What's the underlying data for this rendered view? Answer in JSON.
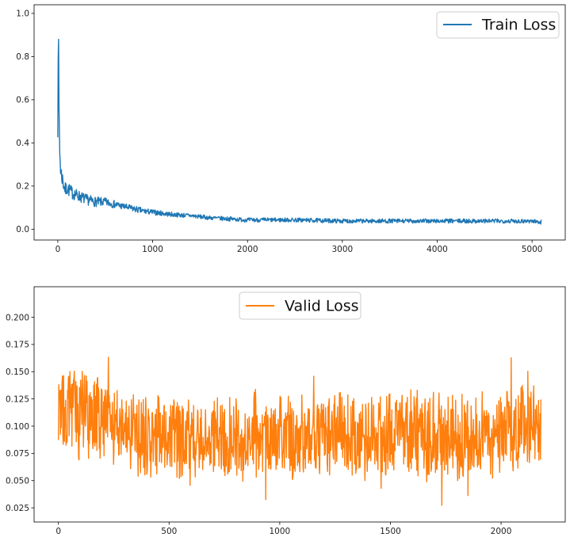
{
  "chart_data": [
    {
      "type": "line",
      "title": "",
      "xlabel": "",
      "ylabel": "",
      "xlim": [
        -250,
        5350
      ],
      "ylim": [
        -0.05,
        1.04
      ],
      "xticks": [
        0,
        1000,
        2000,
        3000,
        4000,
        5000
      ],
      "xtick_labels": [
        "0",
        "1000",
        "2000",
        "3000",
        "4000",
        "5000"
      ],
      "yticks": [
        0.0,
        0.2,
        0.4,
        0.6,
        0.8,
        1.0
      ],
      "ytick_labels": [
        "0.0",
        "0.2",
        "0.4",
        "0.6",
        "0.8",
        "1.0"
      ],
      "grid": false,
      "legend_position": "top-right",
      "series": [
        {
          "name": "Train Loss",
          "color": "#1f77b4",
          "x": [
            0,
            5,
            10,
            15,
            20,
            30,
            40,
            60,
            80,
            100,
            150,
            200,
            300,
            400,
            500,
            600,
            700,
            800,
            900,
            1000,
            1200,
            1400,
            1600,
            1800,
            2000,
            2500,
            3000,
            3500,
            4000,
            4500,
            5000,
            5100
          ],
          "y": [
            0.73,
            0.99,
            0.55,
            0.5,
            0.35,
            0.26,
            0.24,
            0.2,
            0.17,
            0.18,
            0.16,
            0.15,
            0.13,
            0.12,
            0.12,
            0.11,
            0.1,
            0.09,
            0.08,
            0.075,
            0.065,
            0.06,
            0.05,
            0.045,
            0.04,
            0.04,
            0.035,
            0.035,
            0.035,
            0.035,
            0.035,
            0.03
          ],
          "noise_band": [
            0.9,
            0.45,
            0.22,
            0.1,
            0.09,
            0.085,
            0.08,
            0.075,
            0.07,
            0.065,
            0.06,
            0.055,
            0.05,
            0.045,
            0.04,
            0.035,
            0.03,
            0.03,
            0.028,
            0.025,
            0.022,
            0.02,
            0.02,
            0.02,
            0.02,
            0.02,
            0.02,
            0.02,
            0.02,
            0.02,
            0.02,
            0.02
          ]
        }
      ]
    },
    {
      "type": "line",
      "title": "",
      "xlabel": "",
      "ylabel": "",
      "xlim": [
        -110,
        2290
      ],
      "ylim": [
        0.012,
        0.228
      ],
      "xticks": [
        0,
        500,
        1000,
        1500,
        2000
      ],
      "xtick_labels": [
        "0",
        "500",
        "1000",
        "1500",
        "2000"
      ],
      "yticks": [
        0.025,
        0.05,
        0.075,
        0.1,
        0.125,
        0.15,
        0.175,
        0.2
      ],
      "ytick_labels": [
        "0.025",
        "0.050",
        "0.075",
        "0.100",
        "0.125",
        "0.150",
        "0.175",
        "0.200"
      ],
      "grid": false,
      "legend_position": "top-center",
      "series": [
        {
          "name": "Valid Loss",
          "color": "#ff7f0e",
          "x": [
            0,
            100,
            200,
            300,
            400,
            500,
            600,
            700,
            800,
            900,
            1000,
            1100,
            1200,
            1300,
            1400,
            1500,
            1600,
            1700,
            1800,
            1900,
            2000,
            2100,
            2180
          ],
          "y": [
            0.115,
            0.115,
            0.105,
            0.1,
            0.09,
            0.09,
            0.088,
            0.088,
            0.09,
            0.09,
            0.09,
            0.09,
            0.09,
            0.092,
            0.09,
            0.09,
            0.092,
            0.093,
            0.092,
            0.092,
            0.094,
            0.096,
            0.1
          ],
          "noise_band": [
            0.045,
            0.05,
            0.045,
            0.045,
            0.045,
            0.045,
            0.045,
            0.045,
            0.045,
            0.045,
            0.045,
            0.045,
            0.045,
            0.045,
            0.045,
            0.045,
            0.045,
            0.045,
            0.045,
            0.045,
            0.045,
            0.05,
            0.05
          ]
        }
      ]
    }
  ]
}
